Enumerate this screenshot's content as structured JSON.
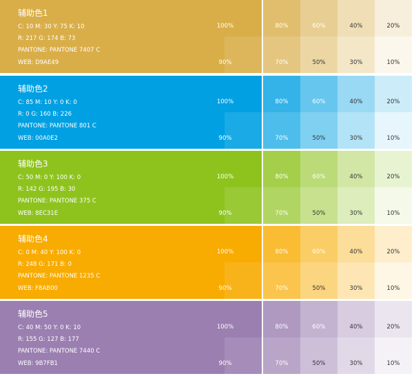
{
  "rows": [
    {
      "title": "辅助色1",
      "cmyk": "C: 10  M: 30  Y: 75  K: 10",
      "rgb": "R: 217  G: 174  B: 73",
      "pantone": "PANTONE: PANTONE 7407 C",
      "web": "WEB: D9AE49",
      "color": "#D9AE49",
      "tints_top": [
        "100%",
        "80%",
        "60%",
        "40%",
        "20%"
      ],
      "tints_bottom": [
        "90%",
        "70%",
        "50%",
        "30%",
        "10%"
      ]
    },
    {
      "title": "辅助色2",
      "cmyk": "C: 85  M: 10  Y: 0  K: 0",
      "rgb": "R: 0  G: 160  B: 226",
      "pantone": "PANTONE: PANTONE 801 C",
      "web": "WEB: 00A0E2",
      "color": "#00A0E2",
      "tints_top": [
        "100%",
        "80%",
        "60%",
        "40%",
        "20%"
      ],
      "tints_bottom": [
        "90%",
        "70%",
        "50%",
        "30%",
        "10%"
      ]
    },
    {
      "title": "辅助色3",
      "cmyk": "C: 50  M: 0  Y: 100  K: 0",
      "rgb": "R: 142  G: 195  B: 30",
      "pantone": "PANTONE: PANTONE 375 C",
      "web": "WEB: 8EC31E",
      "color": "#8EC31E",
      "tints_top": [
        "100%",
        "80%",
        "60%",
        "40%",
        "20%"
      ],
      "tints_bottom": [
        "90%",
        "70%",
        "50%",
        "30%",
        "10%"
      ]
    },
    {
      "title": "辅助色4",
      "cmyk": "C: 0  M: 40  Y: 100  K: 0",
      "rgb": "R: 248  G: 171  B: 0",
      "pantone": "PANTONE: PANTONE 1235 C",
      "web": "WEB: F8AB00",
      "color": "#F8AB00",
      "tints_top": [
        "100%",
        "80%",
        "60%",
        "40%",
        "20%"
      ],
      "tints_bottom": [
        "90%",
        "70%",
        "50%",
        "30%",
        "10%"
      ]
    },
    {
      "title": "辅助色5",
      "cmyk": "C: 40  M: 50  Y: 0  K: 10",
      "rgb": "R: 155  G: 127  B: 177",
      "pantone": "PANTONE: PANTONE 7440 C",
      "web": "WEB: 9B7FB1",
      "color": "#9B7FB1",
      "tints_top": [
        "100%",
        "80%",
        "60%",
        "40%",
        "20%"
      ],
      "tints_bottom": [
        "90%",
        "70%",
        "50%",
        "30%",
        "10%"
      ]
    }
  ]
}
